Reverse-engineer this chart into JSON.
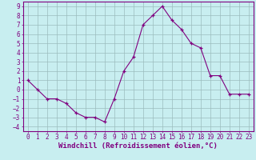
{
  "x": [
    0,
    1,
    2,
    3,
    4,
    5,
    6,
    7,
    8,
    9,
    10,
    11,
    12,
    13,
    14,
    15,
    16,
    17,
    18,
    19,
    20,
    21,
    22,
    23
  ],
  "y": [
    1,
    0,
    -1,
    -1,
    -1.5,
    -2.5,
    -3,
    -3,
    -3.5,
    -1,
    2,
    3.5,
    7,
    8,
    9,
    7.5,
    6.5,
    5,
    4.5,
    1.5,
    1.5,
    -0.5,
    -0.5,
    -0.5
  ],
  "line_color": "#800080",
  "marker": "+",
  "marker_size": 3.5,
  "bg_color": "#c8eef0",
  "grid_color": "#9bbcbd",
  "xlabel": "Windchill (Refroidissement éolien,°C)",
  "xlabel_fontsize": 6.5,
  "xlim": [
    -0.5,
    23.5
  ],
  "ylim": [
    -4.5,
    9.5
  ],
  "yticks": [
    -4,
    -3,
    -2,
    -1,
    0,
    1,
    2,
    3,
    4,
    5,
    6,
    7,
    8,
    9
  ],
  "xticks": [
    0,
    1,
    2,
    3,
    4,
    5,
    6,
    7,
    8,
    9,
    10,
    11,
    12,
    13,
    14,
    15,
    16,
    17,
    18,
    19,
    20,
    21,
    22,
    23
  ],
  "tick_fontsize": 5.5,
  "tick_color": "#800080",
  "spine_color": "#800080",
  "axis_bg_color": "#c8eef0"
}
